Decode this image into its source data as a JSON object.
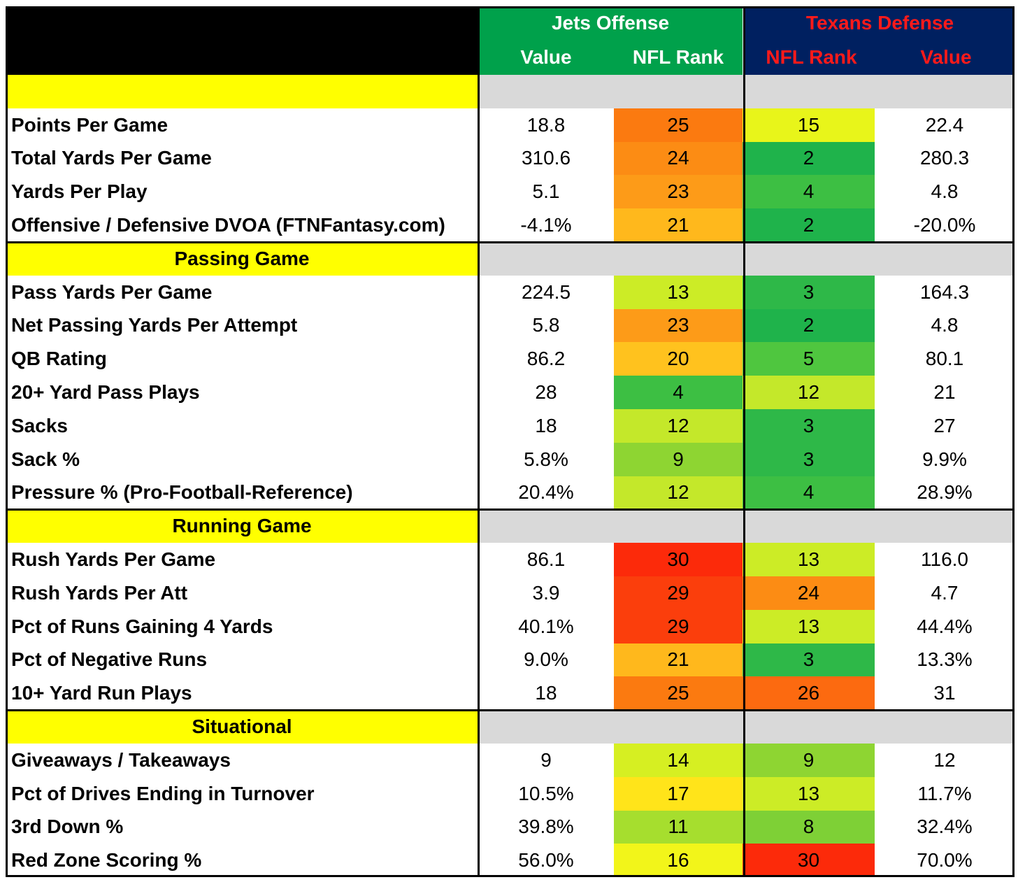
{
  "header": {
    "jets_title": "Jets Offense",
    "texans_title": "Texans Defense",
    "value_label": "Value",
    "rank_label": "NFL Rank"
  },
  "sections": [
    {
      "title": "",
      "rows": [
        {
          "label": "Points Per Game",
          "o_val": "18.8",
          "o_rank": "25",
          "o_color": "#fb7a10",
          "d_rank": "15",
          "d_color": "#e8f51a",
          "d_val": "22.4"
        },
        {
          "label": "Total Yards Per Game",
          "o_val": "310.6",
          "o_rank": "24",
          "o_color": "#fc8c14",
          "d_rank": "2",
          "d_color": "#1fb34b",
          "d_val": "280.3"
        },
        {
          "label": "Yards Per Play",
          "o_val": "5.1",
          "o_rank": "23",
          "o_color": "#fd9b18",
          "d_rank": "4",
          "d_color": "#3dbf43",
          "d_val": "4.8"
        },
        {
          "label": "Offensive / Defensive DVOA (FTNFantasy.com)",
          "o_val": "-4.1%",
          "o_rank": "21",
          "o_color": "#ffb81c",
          "d_rank": "2",
          "d_color": "#1fb34b",
          "d_val": "-20.0%"
        }
      ]
    },
    {
      "title": "Passing Game",
      "rows": [
        {
          "label": "Pass Yards Per Game",
          "o_val": "224.5",
          "o_rank": "13",
          "o_color": "#ccec26",
          "d_rank": "3",
          "d_color": "#2eb848",
          "d_val": "164.3"
        },
        {
          "label": "Net Passing Yards Per Attempt",
          "o_val": "5.8",
          "o_rank": "23",
          "o_color": "#fd9b18",
          "d_rank": "2",
          "d_color": "#1fb34b",
          "d_val": "4.8"
        },
        {
          "label": "QB Rating",
          "o_val": "86.2",
          "o_rank": "20",
          "o_color": "#ffc21e",
          "d_rank": "5",
          "d_color": "#4fc63f",
          "d_val": "80.1"
        },
        {
          "label": "20+ Yard Pass Plays",
          "o_val": "28",
          "o_rank": "4",
          "o_color": "#3dbf43",
          "d_rank": "12",
          "d_color": "#c4e82a",
          "d_val": "21"
        },
        {
          "label": "Sacks",
          "o_val": "18",
          "o_rank": "12",
          "o_color": "#c4e82a",
          "d_rank": "3",
          "d_color": "#2eb848",
          "d_val": "27"
        },
        {
          "label": "Sack %",
          "o_val": "5.8%",
          "o_rank": "9",
          "o_color": "#8ed532",
          "d_rank": "3",
          "d_color": "#2eb848",
          "d_val": "9.9%"
        },
        {
          "label": "Pressure % (Pro-Football-Reference)",
          "o_val": "20.4%",
          "o_rank": "12",
          "o_color": "#c4e82a",
          "d_rank": "4",
          "d_color": "#3dbf43",
          "d_val": "28.9%"
        }
      ]
    },
    {
      "title": "Running Game",
      "rows": [
        {
          "label": "Rush Yards Per Game",
          "o_val": "86.1",
          "o_rank": "30",
          "o_color": "#fc2a0a",
          "d_rank": "13",
          "d_color": "#ccec26",
          "d_val": "116.0"
        },
        {
          "label": "Rush Yards Per Att",
          "o_val": "3.9",
          "o_rank": "29",
          "o_color": "#fb3e0c",
          "d_rank": "24",
          "d_color": "#fc8c14",
          "d_val": "4.7"
        },
        {
          "label": "Pct of Runs Gaining 4 Yards",
          "o_val": "40.1%",
          "o_rank": "29",
          "o_color": "#fb3e0c",
          "d_rank": "13",
          "d_color": "#ccec26",
          "d_val": "44.4%"
        },
        {
          "label": "Pct of Negative Runs",
          "o_val": "9.0%",
          "o_rank": "21",
          "o_color": "#ffb81c",
          "d_rank": "3",
          "d_color": "#2eb848",
          "d_val": "13.3%"
        },
        {
          "label": "10+ Yard Run Plays",
          "o_val": "18",
          "o_rank": "25",
          "o_color": "#fb7a10",
          "d_rank": "26",
          "d_color": "#fc6a10",
          "d_val": "31"
        }
      ]
    },
    {
      "title": "Situational",
      "rows": [
        {
          "label": "Giveaways / Takeaways",
          "o_val": "9",
          "o_rank": "14",
          "o_color": "#d6ef22",
          "d_rank": "9",
          "d_color": "#8ed532",
          "d_val": "12"
        },
        {
          "label": "Pct of Drives Ending in Turnover",
          "o_val": "10.5%",
          "o_rank": "17",
          "o_color": "#ffe41a",
          "d_rank": "13",
          "d_color": "#ccec26",
          "d_val": "11.7%"
        },
        {
          "label": "3rd Down %",
          "o_val": "39.8%",
          "o_rank": "11",
          "o_color": "#a6de2e",
          "d_rank": "8",
          "d_color": "#7ed036",
          "d_val": "32.4%"
        },
        {
          "label": "Red Zone Scoring %",
          "o_val": "56.0%",
          "o_rank": "16",
          "o_color": "#f2f51a",
          "d_rank": "30",
          "d_color": "#fc2a0a",
          "d_val": "70.0%"
        }
      ]
    }
  ]
}
